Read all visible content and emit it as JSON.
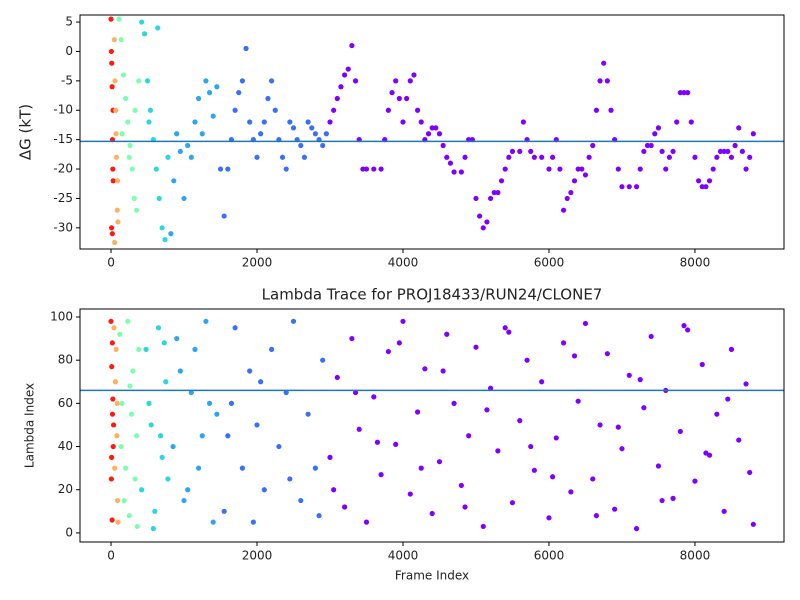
{
  "chart_data": [
    {
      "type": "scatter",
      "ylabel": "ΔG (kT)",
      "xlim": [
        -425,
        9220
      ],
      "ylim": [
        -33.6,
        6.2
      ],
      "xticks": [
        0,
        2000,
        4000,
        6000,
        8000
      ],
      "yticks": [
        5,
        0,
        -5,
        -10,
        -15,
        -20,
        -25,
        -30
      ],
      "hline": {
        "value": -15.3,
        "color": "#1f77b4"
      },
      "series": [
        {
          "color": "#ff1a0d",
          "x": [
            0,
            5,
            10,
            15,
            20,
            25,
            30,
            8,
            18,
            28
          ],
          "values": [
            5.5,
            0,
            -2,
            -6,
            -15,
            -20,
            -22,
            -30,
            -31,
            -10
          ]
        },
        {
          "color": "#ffb060",
          "x": [
            45,
            55,
            65,
            75,
            85,
            95,
            50,
            70,
            90
          ],
          "values": [
            2,
            -5,
            -10,
            -18,
            -27,
            -29,
            -32.5,
            -14,
            -22
          ]
        },
        {
          "color": "#7dffb0",
          "x": [
            110,
            140,
            170,
            200,
            230,
            260,
            290,
            320,
            350,
            380,
            150,
            250,
            330
          ],
          "values": [
            5.5,
            2,
            -4,
            -8,
            -12,
            -16,
            -20,
            -25,
            -27,
            -5,
            -14,
            -18,
            -10
          ]
        },
        {
          "color": "#27d8df",
          "x": [
            420,
            460,
            500,
            540,
            580,
            620,
            660,
            700,
            740,
            780,
            520,
            640
          ],
          "values": [
            5,
            3,
            -5,
            -10,
            -15,
            -20,
            -25,
            -30,
            -32,
            -18,
            -12,
            4
          ]
        },
        {
          "color": "#2ea6ef",
          "x": [
            820,
            860,
            900,
            950,
            1000,
            1050,
            1100,
            1150,
            1200,
            1250,
            1300,
            1350,
            1400,
            1450
          ],
          "values": [
            -31,
            -22,
            -14,
            -17,
            -25,
            -16,
            -18,
            -12,
            -8,
            -14,
            -5,
            -7,
            -11,
            -6
          ]
        },
        {
          "color": "#3b70f5",
          "x": [
            1500,
            1550,
            1600,
            1650,
            1700,
            1750,
            1800,
            1850,
            1900,
            1950,
            2000,
            2050,
            2100,
            2150,
            2200,
            2250,
            2300,
            2350,
            2400,
            2450,
            2500,
            2550,
            2600,
            2650,
            2700,
            2750,
            2800,
            2850,
            2900,
            2950
          ],
          "values": [
            -20,
            -28,
            -20,
            -15,
            -10,
            -7,
            -5,
            0.5,
            -12,
            -15,
            -18,
            -14,
            -12,
            -8,
            -5,
            -10,
            -15,
            -18,
            -20,
            -12,
            -13,
            -15,
            -16,
            -18,
            -12,
            -13,
            -14,
            -15,
            -16,
            -14
          ]
        },
        {
          "color": "#8000ff",
          "x": [
            3000,
            3050,
            3100,
            3150,
            3200,
            3250,
            3300,
            3350,
            3400,
            3450,
            3500,
            3600,
            3700,
            3750,
            3800,
            3850,
            3900,
            3950,
            4000,
            4050,
            4100,
            4150,
            4200,
            4250,
            4300,
            4350,
            4400,
            4450,
            4500,
            4550,
            4600,
            4650,
            4700,
            4800,
            4850,
            4900,
            4950,
            5000,
            5050,
            5100,
            5150,
            5200,
            5250,
            5300,
            5350,
            5400,
            5450,
            5500,
            5600,
            5650,
            5700,
            5750,
            5800,
            5900,
            6000,
            6050,
            6100,
            6150,
            6200,
            6250,
            6300,
            6350,
            6400,
            6450,
            6500,
            6550,
            6600,
            6650,
            6700,
            6750,
            6800,
            6850,
            6900,
            6950,
            7000,
            7100,
            7200,
            7250,
            7300,
            7350,
            7400,
            7450,
            7500,
            7550,
            7600,
            7650,
            7700,
            7750,
            7800,
            7850,
            7900,
            7950,
            8000,
            8050,
            8100,
            8150,
            8200,
            8250,
            8300,
            8350,
            8400,
            8450,
            8500,
            8550,
            8600,
            8650,
            8700,
            8750,
            8800
          ],
          "values": [
            -12,
            -10,
            -8,
            -6,
            -4,
            -3,
            1,
            -5,
            -15,
            -20,
            -20,
            -20,
            -20,
            -15,
            -10,
            -7,
            -5,
            -8,
            -12,
            -8,
            -5,
            -4,
            -10,
            -12,
            -15,
            -14,
            -13,
            -13,
            -14,
            -16,
            -18,
            -19,
            -20.5,
            -20.5,
            -18,
            -15,
            -15,
            -25,
            -28,
            -30,
            -29,
            -25,
            -24,
            -24,
            -22,
            -20,
            -18,
            -17,
            -17,
            -12,
            -15,
            -17,
            -18,
            -18,
            -20,
            -18,
            -15,
            -20,
            -27,
            -25,
            -24,
            -22,
            -20,
            -20,
            -21,
            -18,
            -16,
            -10,
            -5,
            -2,
            -5,
            -10,
            -15,
            -20,
            -23,
            -23,
            -23,
            -20,
            -17,
            -16,
            -16,
            -14,
            -13,
            -17,
            -20,
            -18,
            -17,
            -12,
            -7,
            -7,
            -7,
            -12,
            -18,
            -22,
            -23,
            -23,
            -22,
            -20,
            -18,
            -17,
            -17,
            -17,
            -18,
            -16,
            -13,
            -17,
            -20,
            -18,
            -14
          ]
        }
      ]
    },
    {
      "type": "scatter",
      "title": "Lambda Trace for PROJ18433/RUN24/CLONE7",
      "xlabel": "Frame Index",
      "ylabel": "Lambda Index",
      "xlim": [
        -425,
        9220
      ],
      "ylim": [
        -4.2,
        103.7
      ],
      "xticks": [
        0,
        2000,
        4000,
        6000,
        8000
      ],
      "yticks": [
        0,
        20,
        40,
        60,
        80,
        100
      ],
      "hline": {
        "value": 66,
        "color": "#1f77b4"
      },
      "series": [
        {
          "color": "#ff1a0d",
          "x": [
            0,
            10,
            20,
            30,
            5,
            15,
            25,
            35,
            8,
            18
          ],
          "values": [
            98,
            77,
            55,
            40,
            25,
            6,
            62,
            50,
            35,
            88
          ]
        },
        {
          "color": "#ffb060",
          "x": [
            40,
            60,
            80,
            90,
            50,
            70,
            85,
            95
          ],
          "values": [
            95,
            70,
            45,
            15,
            30,
            85,
            60,
            5
          ]
        },
        {
          "color": "#7dffb0",
          "x": [
            120,
            150,
            200,
            250,
            300,
            350,
            180,
            230,
            280,
            330,
            380,
            140,
            260,
            360
          ],
          "values": [
            92,
            60,
            30,
            8,
            75,
            45,
            15,
            98,
            55,
            25,
            85,
            40,
            68,
            3
          ]
        },
        {
          "color": "#27d8df",
          "x": [
            420,
            480,
            550,
            600,
            650,
            700,
            750,
            520,
            580,
            680,
            730,
            780
          ],
          "values": [
            20,
            85,
            50,
            10,
            95,
            35,
            70,
            60,
            2,
            45,
            88,
            25
          ]
        },
        {
          "color": "#2ea6ef",
          "x": [
            850,
            900,
            1000,
            1100,
            1200,
            1300,
            1400,
            1450,
            950,
            1050,
            1150,
            1250,
            1350
          ],
          "values": [
            40,
            90,
            15,
            65,
            30,
            98,
            5,
            55,
            75,
            20,
            85,
            45,
            60
          ]
        },
        {
          "color": "#3b70f5",
          "x": [
            1550,
            1650,
            1700,
            1800,
            1900,
            1950,
            2000,
            2100,
            2200,
            2300,
            2400,
            2500,
            2600,
            2700,
            2800,
            2900,
            1600,
            2050,
            2450,
            2850
          ],
          "values": [
            10,
            60,
            95,
            30,
            75,
            5,
            50,
            20,
            85,
            40,
            65,
            98,
            15,
            55,
            30,
            80,
            45,
            70,
            25,
            8
          ]
        },
        {
          "color": "#8000ff",
          "x": [
            3000,
            3100,
            3200,
            3300,
            3400,
            3500,
            3600,
            3700,
            3800,
            3900,
            4000,
            4100,
            4200,
            4300,
            4400,
            4500,
            4600,
            4700,
            4800,
            4900,
            5000,
            5100,
            5200,
            5300,
            5400,
            5500,
            5600,
            5700,
            5800,
            5900,
            6000,
            6100,
            6200,
            6300,
            6400,
            6500,
            6600,
            6700,
            6800,
            6900,
            7000,
            7100,
            7200,
            7300,
            7400,
            7500,
            7600,
            7700,
            7800,
            7900,
            8000,
            8100,
            8200,
            8300,
            8400,
            8500,
            8600,
            8700,
            8800,
            3050,
            3350,
            3650,
            3950,
            4250,
            4550,
            4850,
            5150,
            5450,
            5750,
            6050,
            6350,
            6650,
            6950,
            7250,
            7550,
            7850,
            8150,
            8450,
            8750
          ],
          "values": [
            35,
            72,
            12,
            90,
            48,
            5,
            63,
            27,
            84,
            41,
            98,
            18,
            56,
            76,
            9,
            33,
            92,
            60,
            22,
            45,
            86,
            3,
            67,
            38,
            95,
            14,
            52,
            80,
            29,
            70,
            7,
            44,
            88,
            19,
            61,
            97,
            25,
            50,
            83,
            11,
            39,
            73,
            2,
            58,
            91,
            31,
            66,
            16,
            47,
            94,
            24,
            78,
            36,
            55,
            10,
            85,
            43,
            69,
            4,
            20,
            65,
            42,
            88,
            30,
            75,
            12,
            57,
            93,
            40,
            26,
            82,
            8,
            49,
            71,
            15,
            96,
            37,
            62,
            28
          ]
        }
      ]
    }
  ]
}
